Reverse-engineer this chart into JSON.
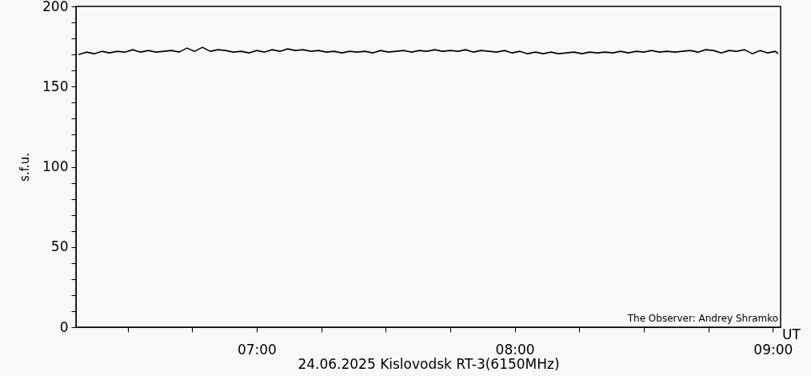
{
  "chart_data": {
    "type": "line",
    "xlabel": "24.06.2025 Kislovodsk RT-3(6150MHz)",
    "ylabel": "s.f.u.",
    "annotations": [
      "UT",
      "The Observer: Andrey Shramko"
    ],
    "xlim": [
      6.3,
      9.03
    ],
    "ylim": [
      0,
      200
    ],
    "xticks": [
      {
        "value": 6.5,
        "label": null
      },
      {
        "value": 6.75,
        "label": null
      },
      {
        "value": 7,
        "label": "07:00"
      },
      {
        "value": 7.25,
        "label": null
      },
      {
        "value": 7.5,
        "label": null
      },
      {
        "value": 7.75,
        "label": null
      },
      {
        "value": 8,
        "label": "08:00"
      },
      {
        "value": 8.25,
        "label": null
      },
      {
        "value": 8.5,
        "label": null
      },
      {
        "value": 8.75,
        "label": null
      },
      {
        "value": 9,
        "label": "09:00"
      }
    ],
    "yticks": [
      0,
      {
        "value": 10,
        "label": null
      },
      {
        "value": 20,
        "label": null
      },
      {
        "value": 30,
        "label": null
      },
      {
        "value": 40,
        "label": null
      },
      50,
      {
        "value": 60,
        "label": null
      },
      {
        "value": 70,
        "label": null
      },
      {
        "value": 80,
        "label": null
      },
      {
        "value": 90,
        "label": null
      },
      100,
      {
        "value": 110,
        "label": null
      },
      {
        "value": 120,
        "label": null
      },
      {
        "value": 130,
        "label": null
      },
      {
        "value": 140,
        "label": null
      },
      150,
      {
        "value": 160,
        "label": null
      },
      {
        "value": 170,
        "label": null
      },
      {
        "value": 180,
        "label": null
      },
      {
        "value": 190,
        "label": null
      },
      200
    ],
    "grid": false,
    "marker": "none",
    "line_style": "solid",
    "series": [
      {
        "color": "#000000",
        "x": [
          6.31,
          6.34,
          6.37,
          6.4,
          6.43,
          6.46,
          6.49,
          6.52,
          6.55,
          6.58,
          6.61,
          6.64,
          6.67,
          6.7,
          6.73,
          6.76,
          6.79,
          6.82,
          6.85,
          6.88,
          6.91,
          6.94,
          6.97,
          7.0,
          7.03,
          7.06,
          7.09,
          7.12,
          7.15,
          7.18,
          7.21,
          7.24,
          7.27,
          7.3,
          7.33,
          7.36,
          7.39,
          7.42,
          7.45,
          7.48,
          7.51,
          7.54,
          7.57,
          7.6,
          7.63,
          7.66,
          7.69,
          7.72,
          7.75,
          7.78,
          7.81,
          7.84,
          7.87,
          7.9,
          7.93,
          7.96,
          7.99,
          8.02,
          8.05,
          8.08,
          8.11,
          8.14,
          8.17,
          8.2,
          8.23,
          8.26,
          8.29,
          8.32,
          8.35,
          8.38,
          8.41,
          8.44,
          8.47,
          8.5,
          8.53,
          8.56,
          8.59,
          8.62,
          8.65,
          8.68,
          8.71,
          8.74,
          8.77,
          8.8,
          8.83,
          8.86,
          8.89,
          8.92,
          8.95,
          8.98,
          9.01,
          9.02
        ],
        "values": [
          170,
          171.5,
          170.5,
          172,
          171,
          172,
          171.5,
          173,
          171.5,
          172.5,
          171.5,
          172,
          172.5,
          171.5,
          174,
          172,
          174.5,
          172,
          173,
          172.5,
          171.5,
          172,
          171,
          172.5,
          171.5,
          173,
          172,
          173.5,
          172.5,
          173,
          172,
          172.5,
          171.5,
          172,
          171,
          172,
          171.5,
          172,
          171,
          172.5,
          171.5,
          172,
          172.5,
          171.5,
          172.5,
          172,
          173,
          172,
          172.5,
          172,
          173,
          171.5,
          172.5,
          172,
          171.5,
          172.5,
          171,
          172,
          170.5,
          171.5,
          170.5,
          171.5,
          170.5,
          171,
          171.5,
          170.5,
          171.5,
          171,
          171.5,
          171,
          172,
          171,
          172,
          171.5,
          172.5,
          171.5,
          172,
          171.5,
          172,
          172.5,
          171.5,
          173,
          172.5,
          171,
          172.5,
          172,
          173,
          170.5,
          172.5,
          171,
          172,
          170.5
        ]
      }
    ]
  }
}
